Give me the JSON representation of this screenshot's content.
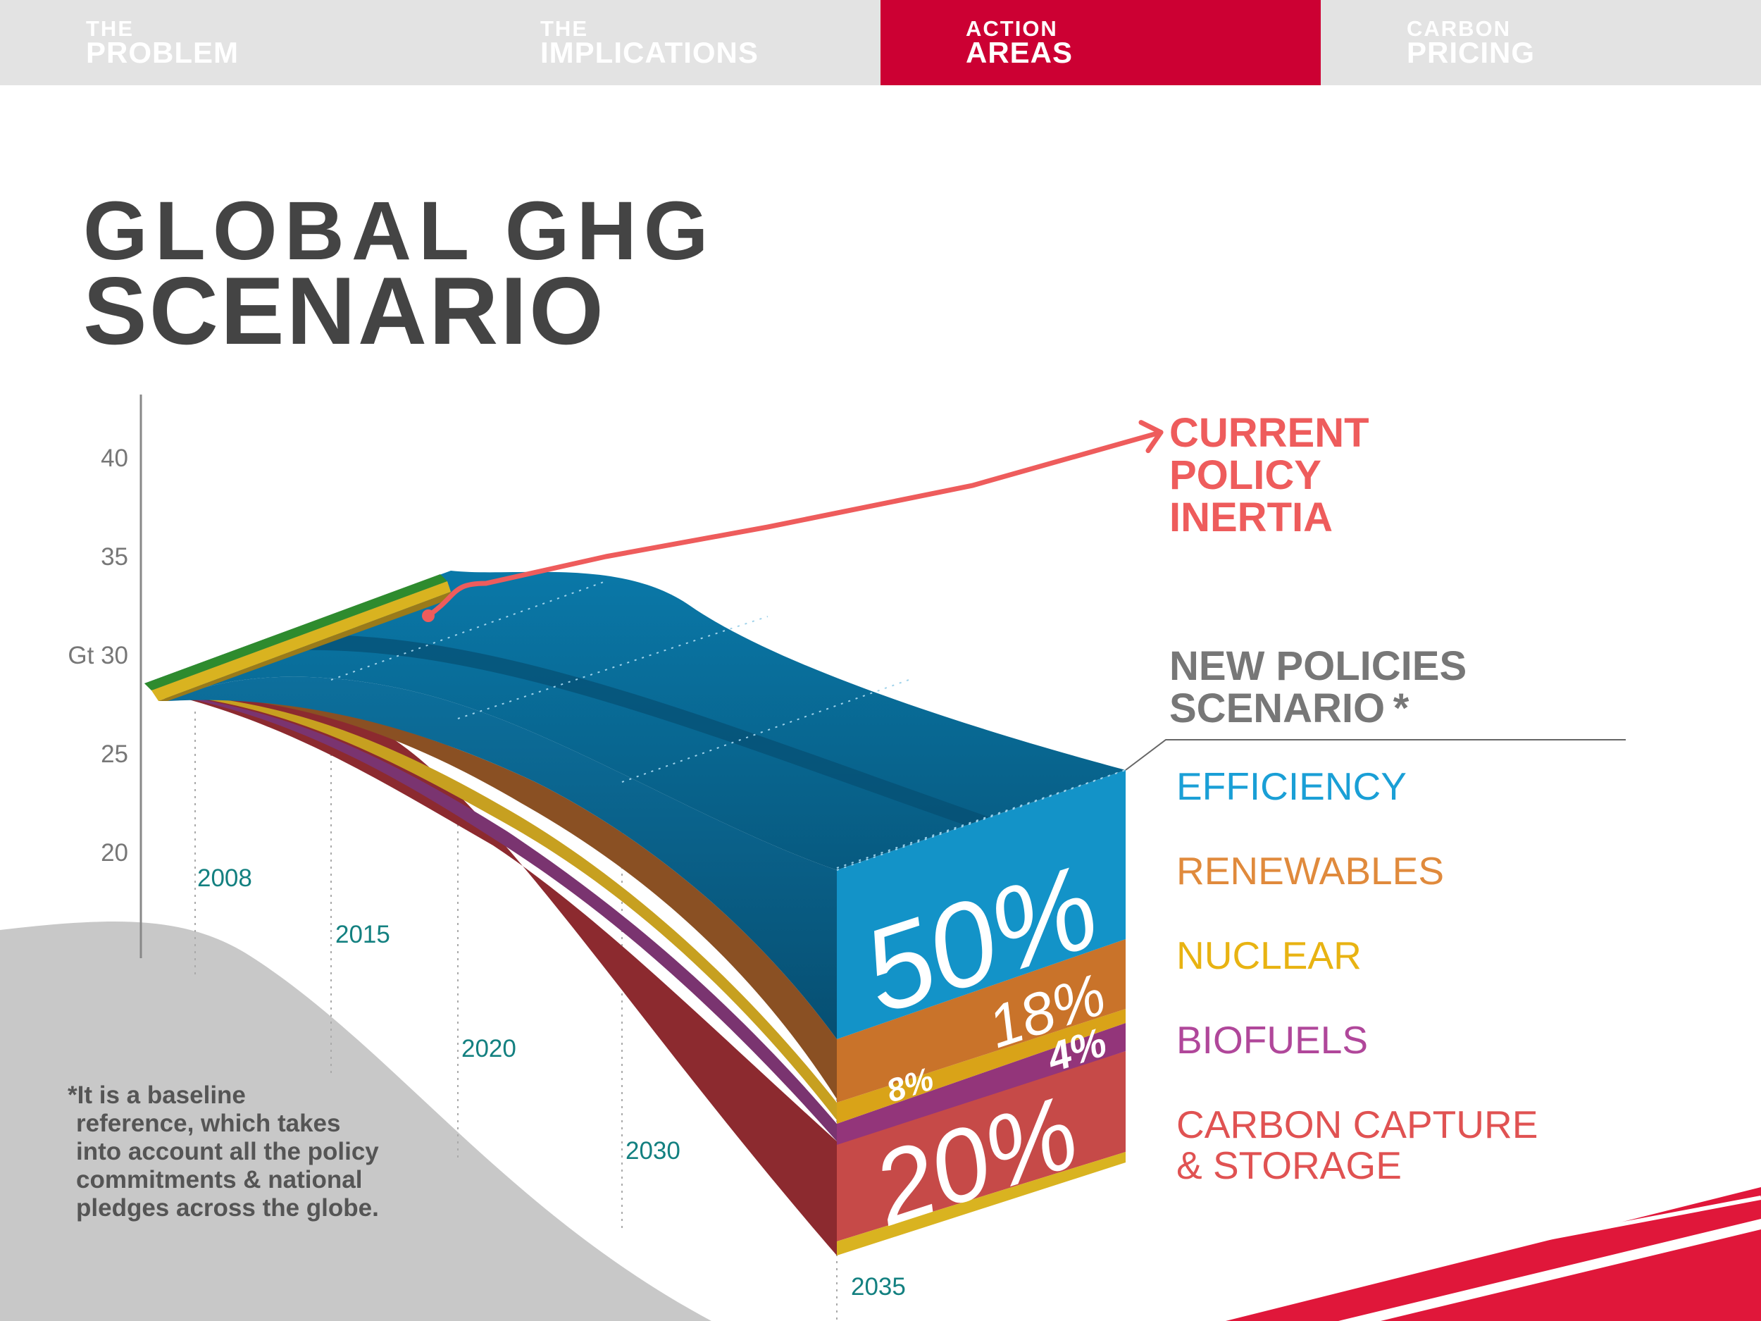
{
  "nav": {
    "tabs": [
      {
        "small": "THE",
        "big": "PROBLEM",
        "active": false
      },
      {
        "small": "THE",
        "big": "IMPLICATIONS",
        "active": false
      },
      {
        "small": "ACTION",
        "big": "AREAS",
        "active": true
      },
      {
        "small": "CARBON",
        "big": "PRICING",
        "active": false
      }
    ]
  },
  "title": {
    "line1": "GLOBAL GHG",
    "line2": "SCENARIO"
  },
  "labels": {
    "current_policy": [
      "CURRENT",
      "POLICY",
      "INERTIA"
    ],
    "new_policies": [
      "NEW POLICIES",
      "SCENARIO *"
    ]
  },
  "footnote": [
    "*It is a baseline",
    " reference, which takes",
    " into account all the policy",
    " commitments & national",
    " pledges across the globe."
  ],
  "colors": {
    "accent": "#cc0033",
    "current_policy": "#ee5c5c",
    "efficiency": "#1a9fd6",
    "renewables": "#e08a3c",
    "nuclear": "#e8b312",
    "biofuels": "#b0479a",
    "ccs": "#e05252"
  },
  "chart_data": {
    "type": "area",
    "title": "GLOBAL GHG SCENARIO",
    "ylabel": "Gt",
    "ylim": [
      15,
      43
    ],
    "yticks": [
      20,
      25,
      30,
      35,
      40
    ],
    "ytick_labels": [
      "20",
      "25",
      "Gt 30",
      "35",
      "40"
    ],
    "x": [
      2008,
      2015,
      2020,
      2030,
      2035
    ],
    "x_labels": [
      "2008",
      "2015",
      "2020",
      "2030",
      "2035"
    ],
    "series": [
      {
        "name": "CURRENT POLICY INERTIA",
        "x": [
          2008,
          2012,
          2015,
          2020,
          2025,
          2030,
          2035
        ],
        "values": [
          28.5,
          32,
          33.9,
          35,
          36.5,
          38.6,
          41.3
        ]
      },
      {
        "name": "NEW POLICIES SCENARIO *",
        "x": [
          2008,
          2012,
          2015,
          2020,
          2025,
          2030,
          2035
        ],
        "values": [
          28.5,
          32,
          33.9,
          34,
          33,
          30,
          25
        ]
      }
    ],
    "reduction_shares": [
      {
        "name": "EFFICIENCY",
        "label": "50%",
        "value": 50
      },
      {
        "name": "RENEWABLES",
        "label": "18%",
        "value": 18
      },
      {
        "name": "NUCLEAR",
        "label": "8%",
        "value": 8
      },
      {
        "name": "BIOFUELS",
        "label": "4%",
        "value": 4
      },
      {
        "name": "CARBON CAPTURE & STORAGE",
        "label": "20%",
        "value": 20
      }
    ],
    "legend_labels": [
      {
        "lines": [
          "EFFICIENCY"
        ],
        "color": "#1a9fd6"
      },
      {
        "lines": [
          "RENEWABLES"
        ],
        "color": "#e08a3c"
      },
      {
        "lines": [
          "NUCLEAR"
        ],
        "color": "#e8b312"
      },
      {
        "lines": [
          "BIOFUELS"
        ],
        "color": "#b0479a"
      },
      {
        "lines": [
          "CARBON CAPTURE",
          "& STORAGE"
        ],
        "color": "#e05252"
      }
    ]
  }
}
